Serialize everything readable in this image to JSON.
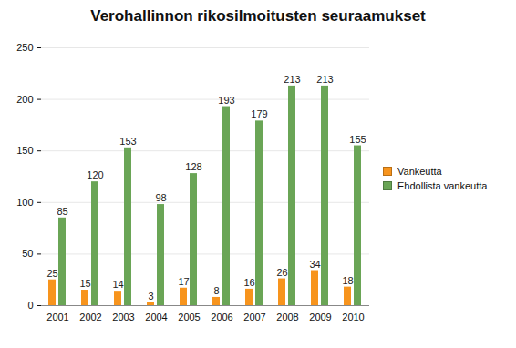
{
  "chart_data": {
    "type": "bar",
    "title": "Verohallinnon rikosilmoitusten seuraamukset",
    "categories": [
      "2001",
      "2002",
      "2003",
      "2004",
      "2005",
      "2006",
      "2007",
      "2008",
      "2009",
      "2010"
    ],
    "series": [
      {
        "name": "Vankeutta",
        "color": "#f7941d",
        "values": [
          25,
          15,
          14,
          3,
          17,
          8,
          16,
          26,
          34,
          18
        ]
      },
      {
        "name": "Ehdollista vankeutta",
        "color": "#6aa556",
        "values": [
          85,
          120,
          153,
          98,
          128,
          193,
          179,
          213,
          213,
          155
        ]
      }
    ],
    "ylim": [
      0,
      250
    ],
    "yticks": [
      0,
      50,
      100,
      150,
      200,
      250
    ],
    "grid": true,
    "data_labels": true,
    "legend": "right"
  }
}
